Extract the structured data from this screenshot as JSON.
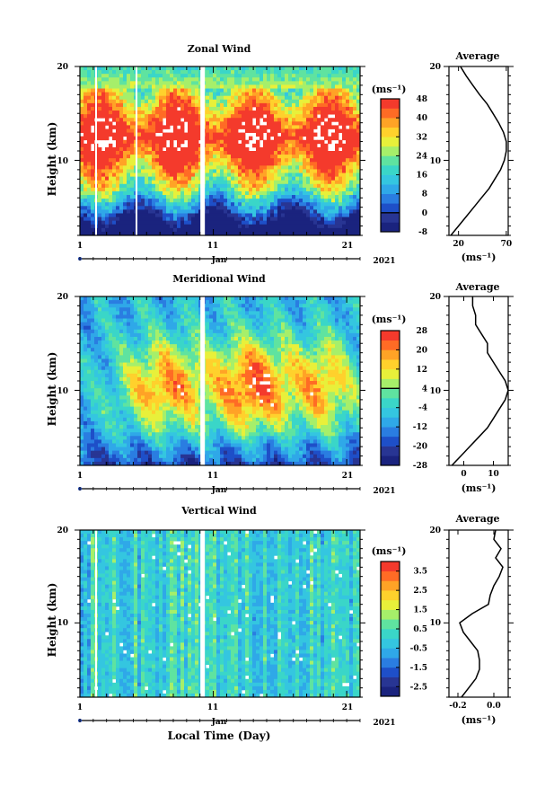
{
  "chart_data": [
    {
      "type": "heatmap",
      "title": "Zonal Wind",
      "ylabel": "Height (km)",
      "y_ticks": [
        "20",
        "10"
      ],
      "x_ticks": [
        "1",
        "11",
        "21"
      ],
      "month_label": "Jan",
      "year_label": "2021",
      "ylim": [
        2,
        20
      ],
      "colorbar": {
        "unit_label": "(ms⁻¹)",
        "ticks": [
          "48",
          "40",
          "32",
          "24",
          "16",
          "8",
          "0",
          "-8"
        ],
        "range": [
          -8,
          48
        ],
        "colors": [
          "#1a237e",
          "#283593",
          "#1e4fc8",
          "#2a7de1",
          "#2fa8e8",
          "#34c6e0",
          "#3ad6c8",
          "#5fe3a0",
          "#a6ef6a",
          "#e8f03a",
          "#ffd12c",
          "#ffa326",
          "#ff6b25",
          "#f43a2c"
        ]
      },
      "profile": {
        "title": "Average",
        "x_ticks": [
          "20",
          "70"
        ],
        "xlabel": "(ms⁻¹)",
        "xlim": [
          10,
          72
        ],
        "heights": [
          2,
          3,
          4,
          5,
          6,
          7,
          8,
          9,
          10,
          11,
          12,
          13,
          14,
          15,
          16,
          17,
          18,
          19,
          20
        ],
        "values": [
          12,
          20,
          28,
          36,
          44,
          52,
          58,
          64,
          68,
          70,
          70,
          67,
          62,
          56,
          50,
          42,
          35,
          28,
          22
        ]
      }
    },
    {
      "type": "heatmap",
      "title": "Meridional Wind",
      "ylabel": "Height (km)",
      "y_ticks": [
        "20",
        "10"
      ],
      "x_ticks": [
        "1",
        "11",
        "21"
      ],
      "month_label": "Jan",
      "year_label": "2021",
      "ylim": [
        2,
        20
      ],
      "colorbar": {
        "unit_label": "(ms⁻¹)",
        "ticks": [
          "28",
          "20",
          "12",
          "4",
          "-4",
          "-12",
          "-20",
          "-28"
        ],
        "range": [
          -28,
          28
        ],
        "colors": [
          "#1a237e",
          "#283593",
          "#1e4fc8",
          "#2a7de1",
          "#2fa8e8",
          "#34c6e0",
          "#3ad6c8",
          "#5fe3a0",
          "#a6ef6a",
          "#e8f03a",
          "#ffd12c",
          "#ffa326",
          "#ff6b25",
          "#f43a2c"
        ]
      },
      "profile": {
        "title": "Average",
        "x_ticks": [
          "0",
          "10"
        ],
        "xlabel": "(ms⁻¹)",
        "xlim": [
          -5,
          15
        ],
        "heights": [
          2,
          3,
          4,
          5,
          6,
          7,
          8,
          9,
          10,
          11,
          12,
          13,
          14,
          15,
          16,
          17,
          18,
          19,
          20
        ],
        "values": [
          -4,
          -1,
          2,
          5,
          8,
          10,
          12,
          14,
          15,
          14,
          12,
          10,
          8,
          8,
          6,
          4,
          4,
          3,
          3
        ]
      }
    },
    {
      "type": "heatmap",
      "title": "Vertical Wind",
      "ylabel": "Height (km)",
      "y_ticks": [
        "20",
        "10"
      ],
      "x_ticks": [
        "1",
        "11",
        "21"
      ],
      "month_label": "Jan",
      "year_label": "2021",
      "xlabel": "Local Time (Day)",
      "ylim": [
        2,
        20
      ],
      "colorbar": {
        "unit_label": "(ms⁻¹)",
        "ticks": [
          "3.5",
          "2.5",
          "1.5",
          "0.5",
          "-0.5",
          "-1.5",
          "-2.5"
        ],
        "range": [
          -3,
          4
        ],
        "colors": [
          "#1a237e",
          "#283593",
          "#1e4fc8",
          "#2a7de1",
          "#2fa8e8",
          "#34c6e0",
          "#3ad6c8",
          "#5fe3a0",
          "#a6ef6a",
          "#e8f03a",
          "#ffd12c",
          "#ffa326",
          "#ff6b25",
          "#f43a2c"
        ]
      },
      "profile": {
        "title": "Average",
        "x_ticks": [
          "-0.2",
          "0.0"
        ],
        "xlabel": "(ms⁻¹)",
        "xlim": [
          -0.25,
          0.08
        ],
        "heights": [
          2,
          3,
          4,
          5,
          6,
          7,
          8,
          9,
          10,
          11,
          12,
          13,
          14,
          15,
          16,
          17,
          18,
          19,
          20
        ],
        "values": [
          -0.18,
          -0.14,
          -0.1,
          -0.08,
          -0.08,
          -0.09,
          -0.13,
          -0.17,
          -0.19,
          -0.12,
          -0.03,
          -0.02,
          0.0,
          0.03,
          0.05,
          0.01,
          0.04,
          0.0,
          0.01
        ]
      }
    }
  ]
}
